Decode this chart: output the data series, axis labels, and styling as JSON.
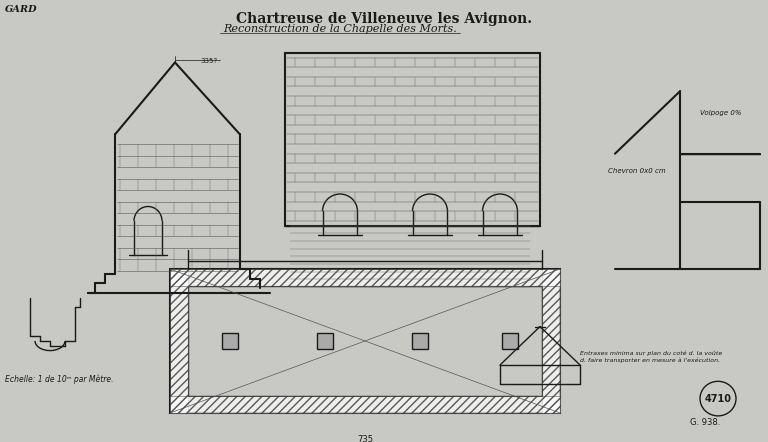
{
  "title1": "Chartreuse de Villeneuve les Avignon.",
  "title2": "Reconstruction de la Chapelle des Morts.",
  "bg_color": "#c8c8c4",
  "line_color": "#1a1a1a",
  "stamp_text": "4710",
  "ref_text": "G. 938.",
  "scale_text": "Echelle: 1 de 10ᵐ par Mètre.",
  "gard_text": "GARD"
}
